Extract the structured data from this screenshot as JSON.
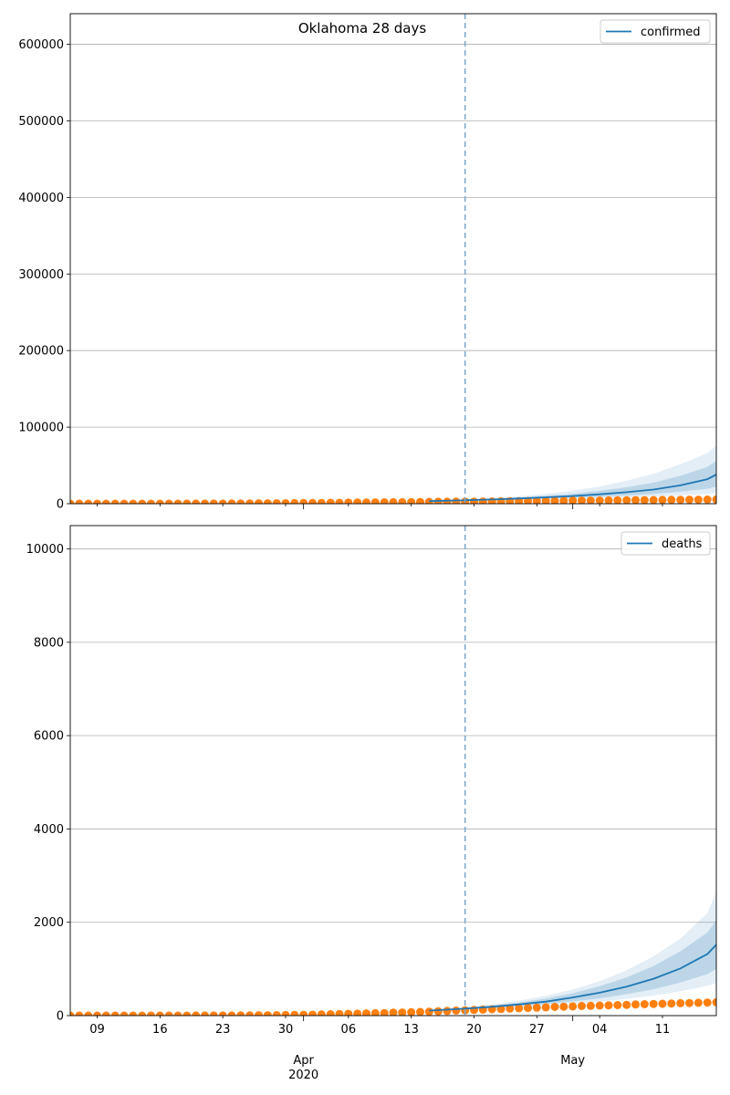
{
  "colors": {
    "forecast": "#1f77b4",
    "observed": "#ff7f0e",
    "band": "#1f77b4",
    "grid": "#b0b0b0",
    "divider": "#7fa9cc"
  },
  "chart_data": [
    {
      "type": "line",
      "title": "Oklahoma 28 days",
      "legend": {
        "label": "confirmed",
        "placement": "top-right"
      },
      "grid": true,
      "xlim": [
        "2020-03-06",
        "2020-05-17"
      ],
      "ylim": [
        0,
        640000
      ],
      "yticks": [
        0,
        100000,
        200000,
        300000,
        400000,
        500000,
        600000
      ],
      "ytick_labels": [
        "0",
        "100000",
        "200000",
        "300000",
        "400000",
        "500000",
        "600000"
      ],
      "forecast_start": "2020-04-19",
      "observed": {
        "start": "2020-03-06",
        "values": [
          1,
          1,
          2,
          2,
          3,
          4,
          5,
          7,
          10,
          15,
          20,
          30,
          45,
          60,
          80,
          105,
          135,
          170,
          220,
          280,
          360,
          430,
          500,
          560,
          640,
          720,
          790,
          880,
          990,
          1150,
          1250,
          1380,
          1520,
          1600,
          1710,
          1800,
          1860,
          1950,
          2100,
          2250,
          2350,
          2450,
          2550,
          2650,
          2600,
          2800,
          2900,
          3000,
          3100,
          3200,
          3300,
          3400,
          3500,
          3600,
          3750,
          3900,
          4000,
          4050,
          4100,
          4200,
          4300,
          4400,
          4500,
          4600,
          4700,
          4800,
          4900,
          5000,
          5100,
          5200,
          5300,
          5400,
          5500
        ]
      },
      "forecast": {
        "dates": [
          "2020-04-15",
          "2020-04-19",
          "2020-04-22",
          "2020-04-25",
          "2020-04-28",
          "2020-05-01",
          "2020-05-04",
          "2020-05-07",
          "2020-05-10",
          "2020-05-13",
          "2020-05-16",
          "2020-05-17"
        ],
        "median": [
          3300,
          4500,
          5500,
          6800,
          8300,
          10000,
          12300,
          15000,
          18500,
          24000,
          32000,
          38000
        ],
        "band_inner": [
          [
            3200,
            4300,
            4900,
            5700,
            6600,
            7700,
            9000,
            10700,
            12600,
            15600,
            19500,
            22000
          ],
          [
            3400,
            4700,
            6300,
            8000,
            10300,
            13000,
            16800,
            21500,
            27500,
            36500,
            48000,
            56000
          ]
        ],
        "band_outer": [
          [
            3100,
            4100,
            4400,
            4900,
            5500,
            6200,
            7000,
            8000,
            9200,
            10800,
            12800,
            14000
          ],
          [
            3500,
            4900,
            7200,
            9700,
            13000,
            17000,
            22500,
            30000,
            39000,
            51500,
            66000,
            76000
          ]
        ]
      }
    },
    {
      "type": "line",
      "legend": {
        "label": "deaths",
        "placement": "top-right"
      },
      "grid": true,
      "xlim": [
        "2020-03-06",
        "2020-05-17"
      ],
      "ylim": [
        0,
        10500
      ],
      "yticks": [
        0,
        2000,
        4000,
        6000,
        8000,
        10000
      ],
      "ytick_labels": [
        "0",
        "2000",
        "4000",
        "6000",
        "8000",
        "10000"
      ],
      "forecast_start": "2020-04-19",
      "xtick_labels": {
        "minor": [
          {
            "date": "2020-03-09",
            "label": "09"
          },
          {
            "date": "2020-03-16",
            "label": "16"
          },
          {
            "date": "2020-03-23",
            "label": "23"
          },
          {
            "date": "2020-03-30",
            "label": "30"
          },
          {
            "date": "2020-04-06",
            "label": "06"
          },
          {
            "date": "2020-04-13",
            "label": "13"
          },
          {
            "date": "2020-04-20",
            "label": "20"
          },
          {
            "date": "2020-04-27",
            "label": "27"
          },
          {
            "date": "2020-05-04",
            "label": "04"
          },
          {
            "date": "2020-05-11",
            "label": "11"
          }
        ],
        "major": [
          {
            "date": "2020-04-01",
            "label": "Apr",
            "sublabel": "2020"
          },
          {
            "date": "2020-05-01",
            "label": "May",
            "sublabel": ""
          }
        ]
      },
      "observed": {
        "start": "2020-03-06",
        "values": [
          0,
          0,
          0,
          0,
          0,
          0,
          0,
          0,
          0,
          0,
          0,
          0,
          0,
          0,
          1,
          1,
          1,
          2,
          2,
          3,
          5,
          7,
          8,
          9,
          11,
          15,
          16,
          17,
          23,
          30,
          34,
          38,
          42,
          46,
          51,
          55,
          62,
          67,
          73,
          79,
          85,
          92,
          99,
          108,
          114,
          122,
          130,
          136,
          140,
          150,
          158,
          165,
          170,
          178,
          185,
          192,
          198,
          205,
          210,
          215,
          220,
          225,
          230,
          238,
          244,
          250,
          255,
          260,
          265,
          270,
          275,
          280,
          285
        ]
      },
      "forecast": {
        "dates": [
          "2020-04-15",
          "2020-04-19",
          "2020-04-22",
          "2020-04-25",
          "2020-04-28",
          "2020-05-01",
          "2020-05-04",
          "2020-05-07",
          "2020-05-10",
          "2020-05-13",
          "2020-05-16",
          "2020-05-17"
        ],
        "median": [
          108,
          150,
          190,
          240,
          300,
          390,
          490,
          620,
          790,
          1010,
          1320,
          1520
        ],
        "band_inner": [
          [
            104,
            140,
            170,
            205,
            250,
            305,
            370,
            460,
            565,
            710,
            890,
            1000
          ],
          [
            112,
            160,
            215,
            280,
            365,
            480,
            630,
            820,
            1060,
            1380,
            1780,
            2050
          ]
        ],
        "band_outer": [
          [
            100,
            130,
            155,
            180,
            215,
            255,
            300,
            360,
            430,
            520,
            640,
            700
          ],
          [
            116,
            170,
            240,
            320,
            425,
            560,
            740,
            970,
            1270,
            1650,
            2200,
            2650
          ]
        ]
      }
    }
  ]
}
